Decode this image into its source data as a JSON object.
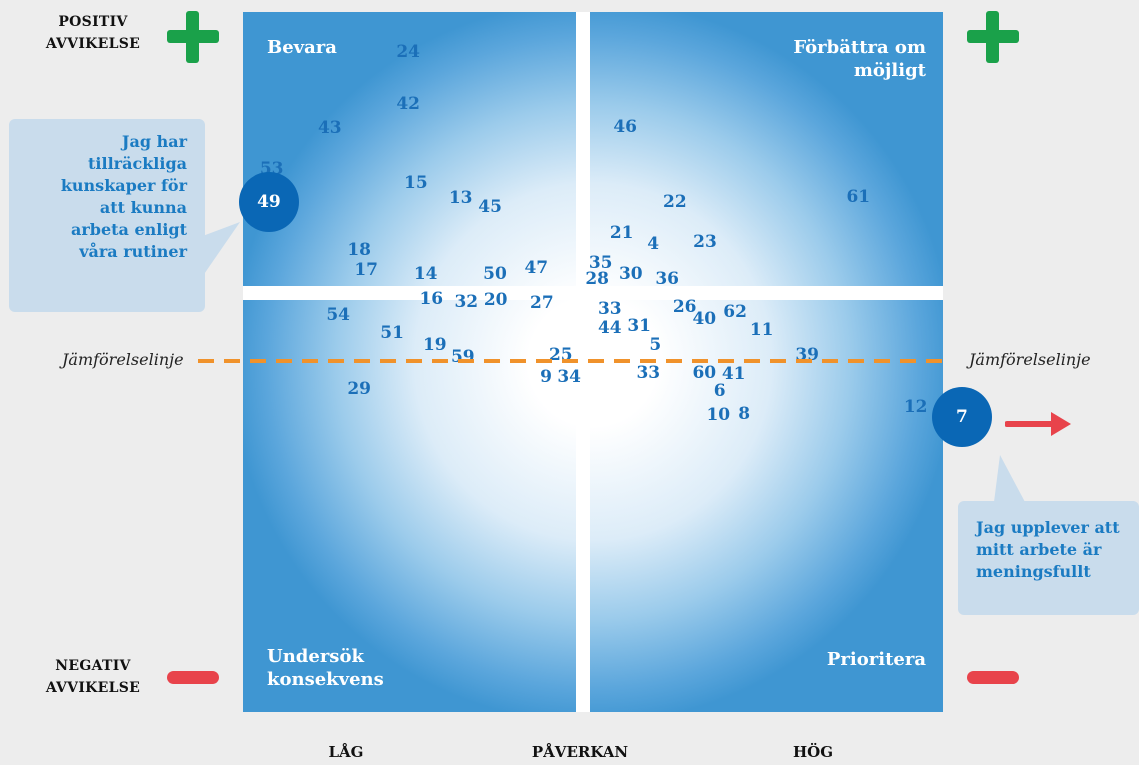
{
  "labels": {
    "positive_line1": "POSITIV",
    "positive_line2": "AVVIKELSE",
    "negative_line1": "NEGATIV",
    "negative_line2": "AVVIKELSE",
    "axis_low": "LÅG",
    "axis_title": "PÅVERKAN",
    "axis_high": "HÖG",
    "ref_line_left": "Jämförelselinje",
    "ref_line_right": "Jämförelselinje"
  },
  "quadrants": {
    "top_left": "Bevara",
    "top_right_line1": "Förbättra om",
    "top_right_line2": "möjligt",
    "bottom_left_line1": "Undersök",
    "bottom_left_line2": "konsekvens",
    "bottom_right": "Prioritera"
  },
  "callouts": {
    "left": {
      "lines": [
        "Jag har",
        "tillräckliga",
        "kunskaper för",
        "att kunna",
        "arbeta enligt",
        "våra rutiner"
      ],
      "item": "49"
    },
    "right": {
      "lines": [
        "Jag upplever att",
        "mitt arbete är",
        "meningsfullt"
      ],
      "item": "7"
    }
  },
  "colors": {
    "plot_blue": "#3f96d2",
    "point_text": "#1b6fb8",
    "plus": "#1aa14a",
    "minus": "#e8434b",
    "reference_line": "#f0922b",
    "bubble": "#0a67b5",
    "callout_bg": "#c9dcec"
  },
  "chart_data": {
    "type": "scatter",
    "xlabel": "PÅVERKAN",
    "ylabel": "AVVIKELSE",
    "x_tick_labels": [
      "LÅG",
      "HÖG"
    ],
    "y_tick_labels": [
      "POSITIV AVVIKELSE",
      "NEGATIV AVVIKELSE"
    ],
    "xlim": [
      0,
      100
    ],
    "ylim": [
      0,
      100
    ],
    "reference_line_y": 50.3,
    "grid": false,
    "points": [
      {
        "label": "24",
        "x": 23.6,
        "y": 94.3
      },
      {
        "label": "42",
        "x": 23.6,
        "y": 86.9
      },
      {
        "label": "43",
        "x": 12.4,
        "y": 83.4
      },
      {
        "label": "53",
        "x": 4.1,
        "y": 77.6
      },
      {
        "label": "15",
        "x": 24.7,
        "y": 75.6
      },
      {
        "label": "13",
        "x": 31.1,
        "y": 73.4
      },
      {
        "label": "45",
        "x": 35.3,
        "y": 72.1
      },
      {
        "label": "18",
        "x": 16.6,
        "y": 66.0
      },
      {
        "label": "17",
        "x": 17.6,
        "y": 63.1
      },
      {
        "label": "14",
        "x": 26.1,
        "y": 62.6
      },
      {
        "label": "50",
        "x": 36.0,
        "y": 62.6
      },
      {
        "label": "47",
        "x": 41.9,
        "y": 63.4
      },
      {
        "label": "16",
        "x": 26.9,
        "y": 59.0
      },
      {
        "label": "32",
        "x": 31.9,
        "y": 58.6
      },
      {
        "label": "20",
        "x": 36.1,
        "y": 58.9
      },
      {
        "label": "27",
        "x": 42.7,
        "y": 58.4
      },
      {
        "label": "54",
        "x": 13.6,
        "y": 56.7
      },
      {
        "label": "51",
        "x": 21.3,
        "y": 54.1
      },
      {
        "label": "19",
        "x": 27.4,
        "y": 52.4
      },
      {
        "label": "59",
        "x": 31.4,
        "y": 50.7
      },
      {
        "label": "25",
        "x": 45.4,
        "y": 51.0
      },
      {
        "label": "9",
        "x": 43.3,
        "y": 47.9
      },
      {
        "label": "34",
        "x": 46.6,
        "y": 47.9
      },
      {
        "label": "29",
        "x": 16.6,
        "y": 46.1
      },
      {
        "label": "46",
        "x": 54.6,
        "y": 83.6
      },
      {
        "label": "22",
        "x": 61.7,
        "y": 72.9
      },
      {
        "label": "61",
        "x": 87.9,
        "y": 73.6
      },
      {
        "label": "21",
        "x": 54.1,
        "y": 68.4
      },
      {
        "label": "4",
        "x": 58.6,
        "y": 66.9
      },
      {
        "label": "23",
        "x": 66.0,
        "y": 67.1
      },
      {
        "label": "35",
        "x": 51.1,
        "y": 64.1
      },
      {
        "label": "28",
        "x": 50.6,
        "y": 61.9
      },
      {
        "label": "30",
        "x": 55.4,
        "y": 62.6
      },
      {
        "label": "36",
        "x": 60.6,
        "y": 61.9
      },
      {
        "label": "33",
        "x": 52.4,
        "y": 57.6
      },
      {
        "label": "26",
        "x": 63.1,
        "y": 57.9
      },
      {
        "label": "40",
        "x": 65.9,
        "y": 56.1
      },
      {
        "label": "62",
        "x": 70.3,
        "y": 57.1
      },
      {
        "label": "44",
        "x": 52.4,
        "y": 54.9
      },
      {
        "label": "31",
        "x": 56.6,
        "y": 55.1
      },
      {
        "label": "11",
        "x": 74.1,
        "y": 54.6
      },
      {
        "label": "5",
        "x": 58.9,
        "y": 52.4
      },
      {
        "label": "39",
        "x": 80.6,
        "y": 51.0
      },
      {
        "label": "33",
        "x": 57.9,
        "y": 48.4
      },
      {
        "label": "60",
        "x": 65.9,
        "y": 48.4
      },
      {
        "label": "41",
        "x": 70.1,
        "y": 48.3
      },
      {
        "label": "6",
        "x": 68.1,
        "y": 45.9
      },
      {
        "label": "10",
        "x": 67.9,
        "y": 42.4
      },
      {
        "label": "8",
        "x": 71.6,
        "y": 42.6
      },
      {
        "label": "12",
        "x": 96.1,
        "y": 43.6
      },
      {
        "label": "49",
        "x": 3.7,
        "y": 72.9,
        "highlight": true
      },
      {
        "label": "7",
        "x": 102.7,
        "y": 42.1,
        "highlight": true
      }
    ]
  }
}
